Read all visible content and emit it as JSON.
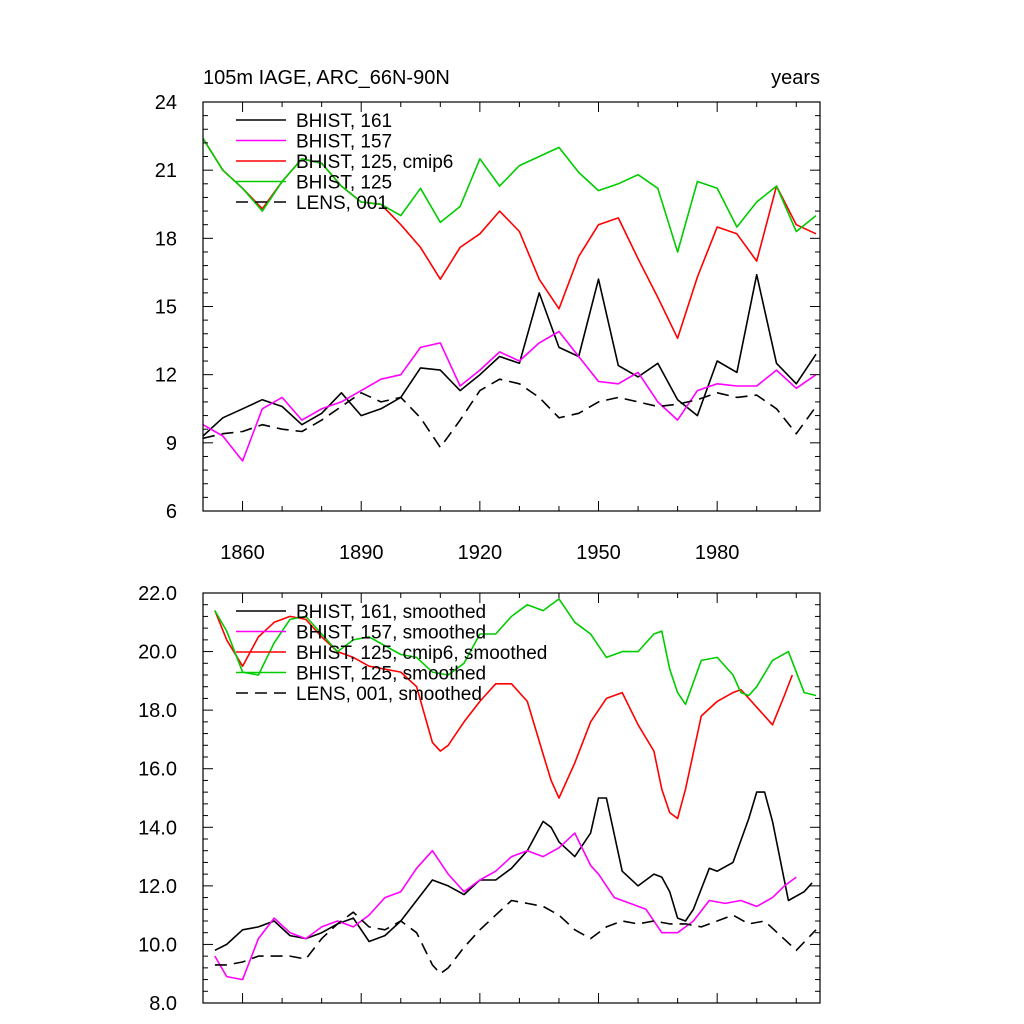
{
  "chart_data": [
    {
      "type": "line",
      "title_left": "105m IAGE, ARC_66N-90N",
      "title_right": "years",
      "xlim": [
        1850,
        2006
      ],
      "ylim": [
        6,
        24
      ],
      "yticks": [
        6,
        9,
        12,
        15,
        18,
        21,
        24
      ],
      "ytick_labels": [
        "6",
        "9",
        "12",
        "15",
        "18",
        "21",
        "24"
      ],
      "xticks": [
        1860,
        1890,
        1920,
        1950,
        1980
      ],
      "xtick_labels": [
        "1860",
        "1890",
        "1920",
        "1950",
        "1980"
      ],
      "legend_position": "top-left",
      "series": [
        {
          "name": "BHIST, 161",
          "color": "#000000",
          "dash": "solid",
          "x": [
            1850,
            1855,
            1860,
            1865,
            1870,
            1875,
            1880,
            1885,
            1890,
            1895,
            1900,
            1905,
            1910,
            1915,
            1920,
            1925,
            1930,
            1935,
            1940,
            1945,
            1950,
            1955,
            1960,
            1965,
            1970,
            1975,
            1980,
            1985,
            1990,
            1995,
            2000,
            2005
          ],
          "y": [
            9.3,
            10.1,
            10.5,
            10.9,
            10.6,
            9.8,
            10.3,
            11.2,
            10.2,
            10.5,
            11.0,
            12.3,
            12.2,
            11.3,
            12.0,
            12.8,
            12.5,
            15.6,
            13.2,
            12.8,
            16.2,
            12.4,
            11.9,
            12.5,
            10.9,
            10.2,
            12.6,
            12.1,
            16.4,
            12.5,
            11.6,
            12.9
          ]
        },
        {
          "name": "BHIST, 157",
          "color": "#ff00ff",
          "dash": "solid",
          "x": [
            1850,
            1855,
            1860,
            1865,
            1870,
            1875,
            1880,
            1885,
            1890,
            1895,
            1900,
            1905,
            1910,
            1915,
            1920,
            1925,
            1930,
            1935,
            1940,
            1945,
            1950,
            1955,
            1960,
            1965,
            1970,
            1975,
            1980,
            1985,
            1990,
            1995,
            2000,
            2005
          ],
          "y": [
            9.8,
            9.3,
            8.2,
            10.5,
            11.0,
            10.0,
            10.5,
            10.8,
            11.3,
            11.8,
            12.0,
            13.2,
            13.4,
            11.5,
            12.2,
            13.0,
            12.6,
            13.4,
            13.9,
            12.8,
            11.7,
            11.6,
            12.1,
            10.8,
            10.0,
            11.3,
            11.6,
            11.5,
            11.5,
            12.2,
            11.4,
            12.0
          ]
        },
        {
          "name": "BHIST, 125, cmip6",
          "color": "#ff0000",
          "dash": "solid",
          "x": [
            1850,
            1855,
            1860,
            1865,
            1870,
            1875,
            1880,
            1885,
            1890,
            1895,
            1900,
            1905,
            1910,
            1915,
            1920,
            1925,
            1930,
            1935,
            1940,
            1945,
            1950,
            1955,
            1960,
            1965,
            1970,
            1975,
            1980,
            1985,
            1990,
            1995,
            2000,
            2005
          ],
          "y": [
            22.4,
            21.0,
            20.2,
            19.3,
            20.5,
            21.5,
            21.3,
            20.3,
            19.6,
            19.5,
            18.6,
            17.6,
            16.2,
            17.6,
            18.2,
            19.2,
            18.3,
            16.2,
            14.9,
            17.2,
            18.6,
            18.9,
            17.1,
            15.4,
            13.6,
            16.3,
            18.5,
            18.2,
            17.0,
            20.3,
            18.6,
            18.2
          ]
        },
        {
          "name": "BHIST, 125",
          "color": "#00cc00",
          "dash": "solid",
          "x": [
            1850,
            1855,
            1860,
            1865,
            1870,
            1875,
            1880,
            1885,
            1890,
            1895,
            1900,
            1905,
            1910,
            1915,
            1920,
            1925,
            1930,
            1935,
            1940,
            1945,
            1950,
            1955,
            1960,
            1965,
            1970,
            1975,
            1980,
            1985,
            1990,
            1995,
            2000,
            2005
          ],
          "y": [
            22.4,
            21.0,
            20.2,
            19.2,
            20.5,
            21.5,
            21.3,
            20.3,
            19.6,
            19.5,
            19.0,
            20.2,
            18.7,
            19.4,
            21.5,
            20.3,
            21.2,
            21.6,
            22.0,
            20.9,
            20.1,
            20.4,
            20.8,
            20.2,
            17.4,
            20.5,
            20.2,
            18.5,
            19.6,
            20.3,
            18.3,
            19.0
          ]
        },
        {
          "name": "LENS, 001",
          "color": "#000000",
          "dash": "dashed",
          "x": [
            1850,
            1855,
            1860,
            1865,
            1870,
            1875,
            1880,
            1885,
            1890,
            1895,
            1900,
            1905,
            1910,
            1915,
            1920,
            1925,
            1930,
            1935,
            1940,
            1945,
            1950,
            1955,
            1960,
            1965,
            1970,
            1975,
            1980,
            1985,
            1990,
            1995,
            2000,
            2005
          ],
          "y": [
            9.2,
            9.4,
            9.5,
            9.8,
            9.6,
            9.5,
            10.0,
            10.6,
            11.2,
            10.8,
            11.0,
            10.1,
            8.8,
            10.0,
            11.3,
            11.8,
            11.6,
            11.0,
            10.1,
            10.3,
            10.8,
            11.0,
            10.8,
            10.6,
            10.7,
            10.9,
            11.2,
            11.0,
            11.1,
            10.5,
            9.4,
            10.6
          ]
        }
      ]
    },
    {
      "type": "line",
      "xlim": [
        1850,
        2006
      ],
      "ylim": [
        8,
        22
      ],
      "yticks": [
        8,
        10,
        12,
        14,
        16,
        18,
        20,
        22
      ],
      "ytick_labels": [
        "8.0",
        "10.0",
        "12.0",
        "14.0",
        "16.0",
        "18.0",
        "20.0",
        "22.0"
      ],
      "xticks": [
        1860,
        1890,
        1920,
        1950,
        1980
      ],
      "legend_position": "top-left",
      "series": [
        {
          "name": "BHIST, 161, smoothed",
          "color": "#000000",
          "dash": "solid",
          "x": [
            1853,
            1856,
            1860,
            1864,
            1868,
            1872,
            1876,
            1880,
            1884,
            1888,
            1892,
            1896,
            1900,
            1904,
            1908,
            1912,
            1916,
            1920,
            1924,
            1928,
            1932,
            1936,
            1938,
            1940,
            1944,
            1948,
            1950,
            1952,
            1956,
            1960,
            1964,
            1966,
            1968,
            1970,
            1972,
            1974,
            1978,
            1980,
            1984,
            1988,
            1990,
            1992,
            1994,
            1998,
            2002,
            2004
          ],
          "y": [
            9.8,
            10.0,
            10.5,
            10.6,
            10.8,
            10.3,
            10.2,
            10.4,
            10.7,
            10.9,
            10.1,
            10.3,
            10.8,
            11.5,
            12.2,
            12.0,
            11.7,
            12.2,
            12.2,
            12.6,
            13.2,
            14.2,
            14.0,
            13.5,
            13.0,
            13.8,
            15.0,
            15.0,
            12.5,
            12.0,
            12.4,
            12.3,
            11.8,
            10.9,
            10.8,
            11.2,
            12.6,
            12.5,
            12.8,
            14.3,
            15.2,
            15.2,
            14.2,
            11.5,
            11.8,
            12.1
          ]
        },
        {
          "name": "BHIST, 157, smoothed",
          "color": "#ff00ff",
          "dash": "solid",
          "x": [
            1853,
            1856,
            1860,
            1864,
            1868,
            1872,
            1876,
            1880,
            1884,
            1888,
            1892,
            1896,
            1900,
            1904,
            1908,
            1912,
            1916,
            1920,
            1924,
            1928,
            1932,
            1936,
            1940,
            1944,
            1948,
            1950,
            1954,
            1958,
            1962,
            1966,
            1970,
            1974,
            1978,
            1982,
            1986,
            1990,
            1994,
            1997,
            2000
          ],
          "y": [
            9.6,
            8.9,
            8.8,
            10.2,
            10.9,
            10.4,
            10.2,
            10.6,
            10.8,
            10.6,
            11.0,
            11.6,
            11.8,
            12.6,
            13.2,
            12.4,
            11.8,
            12.2,
            12.5,
            13.0,
            13.2,
            13.0,
            13.3,
            13.8,
            12.7,
            12.4,
            11.6,
            11.4,
            11.2,
            10.4,
            10.4,
            10.8,
            11.5,
            11.4,
            11.5,
            11.3,
            11.6,
            12.0,
            12.3
          ]
        },
        {
          "name": "BHIST, 125, cmip6, smoothed",
          "color": "#ff0000",
          "dash": "solid",
          "x": [
            1853,
            1856,
            1860,
            1864,
            1868,
            1872,
            1876,
            1880,
            1884,
            1888,
            1892,
            1896,
            1900,
            1904,
            1908,
            1910,
            1912,
            1916,
            1920,
            1924,
            1928,
            1932,
            1936,
            1938,
            1940,
            1944,
            1948,
            1952,
            1956,
            1960,
            1964,
            1966,
            1968,
            1970,
            1972,
            1976,
            1980,
            1984,
            1986,
            1990,
            1994,
            1997,
            1999
          ],
          "y": [
            21.4,
            20.4,
            19.5,
            20.5,
            21.0,
            21.2,
            21.1,
            20.5,
            20.0,
            19.8,
            19.5,
            19.4,
            19.3,
            18.8,
            16.9,
            16.6,
            16.8,
            17.6,
            18.3,
            18.9,
            18.9,
            18.3,
            16.5,
            15.6,
            15.0,
            16.2,
            17.6,
            18.4,
            18.6,
            17.5,
            16.6,
            15.3,
            14.5,
            14.3,
            15.3,
            17.8,
            18.3,
            18.6,
            18.7,
            18.1,
            17.5,
            18.5,
            19.2
          ]
        },
        {
          "name": "BHIST, 125, smoothed",
          "color": "#00cc00",
          "dash": "solid",
          "x": [
            1853,
            1856,
            1860,
            1864,
            1868,
            1872,
            1876,
            1880,
            1884,
            1888,
            1892,
            1896,
            1900,
            1904,
            1908,
            1912,
            1916,
            1920,
            1924,
            1928,
            1932,
            1936,
            1940,
            1944,
            1948,
            1952,
            1956,
            1960,
            1964,
            1966,
            1968,
            1970,
            1972,
            1976,
            1980,
            1984,
            1986,
            1988,
            1990,
            1994,
            1998,
            2002,
            2005
          ],
          "y": [
            21.4,
            20.7,
            19.3,
            19.2,
            20.3,
            21.1,
            21.2,
            20.6,
            20.0,
            20.4,
            20.5,
            20.2,
            19.9,
            19.8,
            19.3,
            19.2,
            19.6,
            20.6,
            20.6,
            21.2,
            21.6,
            21.4,
            21.8,
            21.0,
            20.6,
            19.8,
            20.0,
            20.0,
            20.6,
            20.7,
            19.4,
            18.6,
            18.2,
            19.7,
            19.8,
            19.2,
            18.6,
            18.5,
            18.8,
            19.7,
            20.0,
            18.6,
            18.5
          ]
        },
        {
          "name": "LENS, 001, smoothed",
          "color": "#000000",
          "dash": "dashed",
          "x": [
            1853,
            1856,
            1860,
            1864,
            1868,
            1872,
            1876,
            1880,
            1884,
            1888,
            1892,
            1896,
            1900,
            1904,
            1908,
            1910,
            1912,
            1916,
            1920,
            1924,
            1928,
            1932,
            1936,
            1940,
            1944,
            1948,
            1952,
            1956,
            1960,
            1964,
            1968,
            1972,
            1976,
            1980,
            1984,
            1988,
            1992,
            1996,
            2000,
            2005
          ],
          "y": [
            9.3,
            9.3,
            9.4,
            9.6,
            9.6,
            9.6,
            9.5,
            10.2,
            10.7,
            11.1,
            10.6,
            10.5,
            10.8,
            10.4,
            9.3,
            9.0,
            9.2,
            9.9,
            10.5,
            11.0,
            11.5,
            11.4,
            11.3,
            11.0,
            10.5,
            10.2,
            10.6,
            10.8,
            10.7,
            10.8,
            10.7,
            10.7,
            10.6,
            10.8,
            11.0,
            10.7,
            10.8,
            10.3,
            9.8,
            10.5
          ]
        }
      ]
    }
  ]
}
